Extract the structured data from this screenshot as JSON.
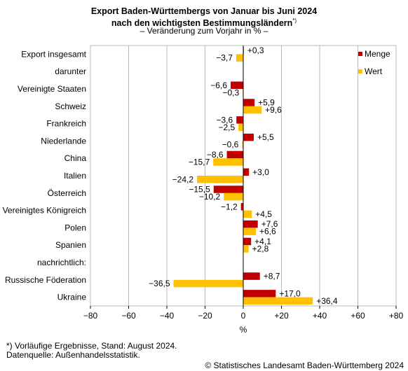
{
  "title_line1": "Export Baden-Württembergs von Januar bis Juni 2024",
  "title_line2": "nach den wichtigsten Bestimmungsländern",
  "title_sup": "*)",
  "subtitle": "– Veränderung zum Vorjahr in % –",
  "footnote1": "*) Vorläufige Ergebnisse, Stand: August 2024.",
  "footnote2": "Datenquelle: Außenhandelsstatistik.",
  "copyright": "© Statistisches Landesamt Baden-Württemberg 2024",
  "colors": {
    "menge": "#c00000",
    "wert": "#ffc000",
    "grid": "#b8b8b8",
    "axis": "#000000"
  },
  "chart_data": {
    "type": "bar",
    "orientation": "horizontal",
    "xlabel": "%",
    "xlim": [
      -80,
      80
    ],
    "xticks": [
      "−80",
      "−60",
      "−40",
      "−20",
      "0",
      "+20",
      "+40",
      "+60",
      "+80"
    ],
    "grid": true,
    "legend_position": "top-right",
    "categories": [
      "Export insgesamt",
      "darunter",
      "Vereinigte Staaten",
      "Schweiz",
      "Frankreich",
      "Niederlande",
      "China",
      "Italien",
      "Österreich",
      "Vereinigtes Königreich",
      "Polen",
      "Spanien",
      "nachrichtlich:",
      "Russische Föderation",
      "Ukraine"
    ],
    "series": [
      {
        "name": "Menge",
        "values": [
          0.3,
          null,
          -6.6,
          5.9,
          -3.6,
          5.5,
          -8.6,
          3.0,
          -15.5,
          -1.2,
          7.6,
          4.1,
          null,
          8.7,
          17.0
        ],
        "labels": [
          "+0,3",
          "",
          "−6,6",
          "+5,9",
          "−3,6",
          "+5,5",
          "−8,6",
          "+3,0",
          "−15,5",
          "−1,2",
          "+7,6",
          "+4,1",
          "",
          "+8,7",
          "+17,0"
        ]
      },
      {
        "name": "Wert",
        "values": [
          -3.7,
          null,
          -0.3,
          9.6,
          -2.5,
          -0.6,
          -15.7,
          -24.2,
          -10.2,
          4.5,
          6.6,
          2.8,
          null,
          -36.5,
          36.4
        ],
        "labels": [
          "−3,7",
          "",
          "−0,3",
          "+9,6",
          "−2,5",
          "−0,6",
          "−15,7",
          "−24,2",
          "−10,2",
          "+4,5",
          "+6,6",
          "+2,8",
          "",
          "−36,5",
          "+36,4"
        ]
      }
    ]
  }
}
